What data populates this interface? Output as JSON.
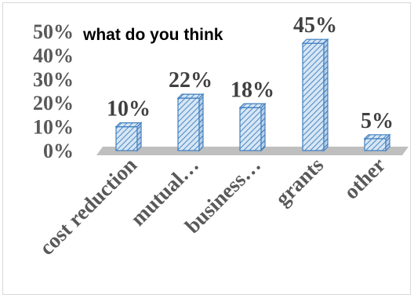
{
  "chart_data": {
    "type": "bar",
    "title": "what do you think",
    "categories": [
      "cost reduction",
      "mutual…",
      "business…",
      "grants",
      "other"
    ],
    "values": [
      10,
      22,
      18,
      45,
      5
    ],
    "data_labels": [
      "10%",
      "22%",
      "18%",
      "45%",
      "5%"
    ],
    "ytick_labels": [
      "0%",
      "10%",
      "20%",
      "30%",
      "40%",
      "50%"
    ],
    "yticks": [
      0,
      10,
      20,
      30,
      40,
      50
    ],
    "ylim": [
      0,
      50
    ],
    "xlabel": "",
    "ylabel": "",
    "grid": false,
    "legend": "none",
    "style": "3d-bar",
    "colors": {
      "bar_fill": "#d6e6f4",
      "bar_hatch": "#4a86c5",
      "bar_edge": "#3f7fbf",
      "floor": "#bfbfbf",
      "tick_text": "#595959",
      "label_text": "#404040"
    }
  }
}
